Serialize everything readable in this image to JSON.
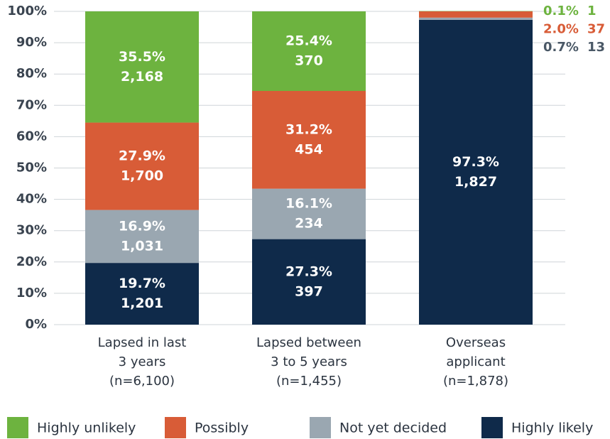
{
  "chart_data": {
    "type": "stacked_bar",
    "categories": [
      [
        "Lapsed in last",
        "3 years",
        "(n=6,100)"
      ],
      [
        "Lapsed between",
        "3 to 5 years",
        "(n=1,455)"
      ],
      [
        "Overseas",
        "applicant",
        "(n=1,878)"
      ]
    ],
    "series": [
      {
        "name": "Highly unlikely",
        "color": "#6db33f",
        "values": [
          35.5,
          25.4,
          0.1
        ],
        "value_labels": [
          "35.5%",
          "25.4%",
          "0.1%"
        ],
        "count_labels": [
          "2,168",
          "370",
          "1"
        ]
      },
      {
        "name": "Possibly",
        "color": "#d85c37",
        "values": [
          27.9,
          31.2,
          2.0
        ],
        "value_labels": [
          "27.9%",
          "31.2%",
          "2.0%"
        ],
        "count_labels": [
          "1,700",
          "454",
          "37"
        ]
      },
      {
        "name": "Not yet decided",
        "color": "#9aa7b1",
        "values": [
          16.9,
          16.1,
          0.7
        ],
        "value_labels": [
          "16.9%",
          "16.1%",
          "0.7%"
        ],
        "count_labels": [
          "1,031",
          "234",
          "13"
        ]
      },
      {
        "name": "Highly likely",
        "color": "#0f2a4a",
        "values": [
          19.7,
          27.3,
          97.3
        ],
        "value_labels": [
          "19.7%",
          "27.3%",
          "97.3%"
        ],
        "count_labels": [
          "1,201",
          "397",
          "1,827"
        ]
      }
    ],
    "ylim": [
      0,
      100
    ],
    "yticks": [
      {
        "value": 0,
        "label": "0%"
      },
      {
        "value": 10,
        "label": "10%"
      },
      {
        "value": 20,
        "label": "20%"
      },
      {
        "value": 30,
        "label": "30%"
      },
      {
        "value": 40,
        "label": "40%"
      },
      {
        "value": 50,
        "label": "50%"
      },
      {
        "value": 60,
        "label": "60%"
      },
      {
        "value": 70,
        "label": "70%"
      },
      {
        "value": 80,
        "label": "80%"
      },
      {
        "value": 90,
        "label": "90%"
      },
      {
        "value": 100,
        "label": "100%"
      }
    ],
    "grid": true
  }
}
